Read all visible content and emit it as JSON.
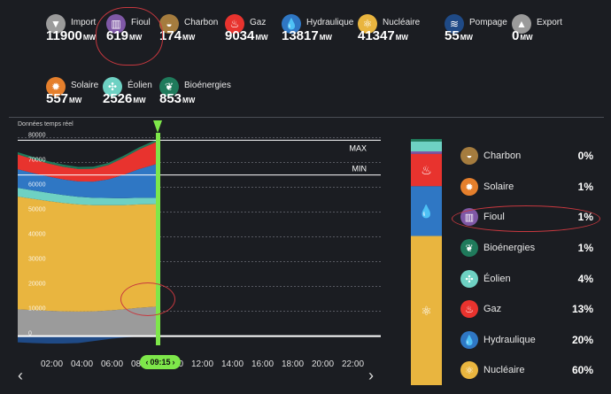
{
  "sources": [
    {
      "key": "import",
      "label": "Import",
      "value": "11900",
      "unit": "MW",
      "color": "#9b9b9b",
      "icon": "import-icon"
    },
    {
      "key": "fioul",
      "label": "Fioul",
      "value": "619",
      "unit": "MW",
      "color": "#7f58a6",
      "icon": "fuel-oil-icon"
    },
    {
      "key": "charbon",
      "label": "Charbon",
      "value": "174",
      "unit": "MW",
      "color": "#a57c3e",
      "icon": "coal-icon"
    },
    {
      "key": "gaz",
      "label": "Gaz",
      "value": "9034",
      "unit": "MW",
      "color": "#e8332e",
      "icon": "gas-icon"
    },
    {
      "key": "hydraulique",
      "label": "Hydraulique",
      "value": "13817",
      "unit": "MW",
      "color": "#2f77c4",
      "icon": "hydro-icon"
    },
    {
      "key": "nucleaire",
      "label": "Nucléaire",
      "value": "41347",
      "unit": "MW",
      "color": "#e9b53f",
      "icon": "nuclear-icon"
    },
    {
      "key": "pompage",
      "label": "Pompage",
      "value": "55",
      "unit": "MW",
      "color": "#1f4a86",
      "icon": "pumping-icon"
    },
    {
      "key": "export",
      "label": "Export",
      "value": "0",
      "unit": "MW",
      "color": "#9b9b9b",
      "icon": "export-icon"
    },
    {
      "key": "solaire",
      "label": "Solaire",
      "value": "557",
      "unit": "MW",
      "color": "#e57f2c",
      "icon": "solar-icon"
    },
    {
      "key": "eolien",
      "label": "Éolien",
      "value": "2526",
      "unit": "MW",
      "color": "#6ed1c3",
      "icon": "wind-icon"
    },
    {
      "key": "bioenergies",
      "label": "Bioénergies",
      "value": "853",
      "unit": "MW",
      "color": "#1f7a5b",
      "icon": "bioenergy-icon"
    }
  ],
  "chart": {
    "title": "Données temps réel",
    "time_badge": "09:15",
    "max_label": "MAX",
    "min_label": "MIN",
    "nav_prev": "‹",
    "nav_next": "›",
    "badge_prev": "‹",
    "badge_next": "›"
  },
  "chart_data": {
    "type": "area",
    "title": "Données temps réel",
    "x_tick_labels": [
      "02:00",
      "04:00",
      "06:00",
      "08:00",
      "10:00",
      "12:00",
      "14:00",
      "16:00",
      "18:00",
      "20:00",
      "22:00"
    ],
    "y_tick_labels": [
      "0",
      "10000",
      "20000",
      "30000",
      "40000",
      "50000",
      "60000",
      "70000",
      "80000"
    ],
    "ylim": [
      -3000,
      82000
    ],
    "xlim_hours": [
      0,
      24
    ],
    "current_time_hours": 9.25,
    "max_line": 79000,
    "min_line": 65000,
    "x": [
      0,
      1,
      2,
      3,
      4,
      5,
      6,
      7,
      8,
      9,
      9.25
    ],
    "series": [
      {
        "name": "Import",
        "color": "#9b9b9b",
        "values": [
          10800,
          10500,
          10200,
          10000,
          9900,
          10000,
          10300,
          10800,
          11400,
          11800,
          11900
        ]
      },
      {
        "name": "Nucléaire",
        "color": "#e9b53f",
        "values": [
          45500,
          44900,
          44300,
          43700,
          43200,
          42800,
          42500,
          42000,
          41700,
          41400,
          41347
        ]
      },
      {
        "name": "Éolien",
        "color": "#6ed1c3",
        "values": [
          3500,
          3400,
          3300,
          3200,
          3100,
          3000,
          2900,
          2800,
          2700,
          2600,
          2526
        ]
      },
      {
        "name": "Hydraulique",
        "color": "#2f77c4",
        "values": [
          7500,
          7000,
          6600,
          6300,
          6200,
          6500,
          7500,
          9500,
          11500,
          13300,
          13817
        ]
      },
      {
        "name": "Gaz",
        "color": "#e8332e",
        "values": [
          6000,
          5600,
          5300,
          5100,
          5000,
          5200,
          5800,
          6800,
          7900,
          8800,
          9034
        ]
      },
      {
        "name": "Bioénergies",
        "color": "#1f7a5b",
        "values": [
          900,
          900,
          880,
          870,
          860,
          860,
          860,
          860,
          855,
          853,
          853
        ]
      },
      {
        "name": "Pompage",
        "color": "#1f4a86",
        "values": [
          -2500,
          -2800,
          -3000,
          -3000,
          -2800,
          -2000,
          -1200,
          -600,
          -200,
          -60,
          -55
        ]
      }
    ]
  },
  "mix": [
    {
      "label": "Charbon",
      "pct": "0%",
      "color": "#a57c3e",
      "icon": "coal-icon"
    },
    {
      "label": "Solaire",
      "pct": "1%",
      "color": "#e57f2c",
      "icon": "solar-icon"
    },
    {
      "label": "Fioul",
      "pct": "1%",
      "color": "#7f58a6",
      "icon": "fuel-oil-icon"
    },
    {
      "label": "Bioénergies",
      "pct": "1%",
      "color": "#1f7a5b",
      "icon": "bioenergy-icon"
    },
    {
      "label": "Éolien",
      "pct": "4%",
      "color": "#6ed1c3",
      "icon": "wind-icon"
    },
    {
      "label": "Gaz",
      "pct": "13%",
      "color": "#e8332e",
      "icon": "gas-icon"
    },
    {
      "label": "Hydraulique",
      "pct": "20%",
      "color": "#2f77c4",
      "icon": "hydro-icon"
    },
    {
      "label": "Nucléaire",
      "pct": "60%",
      "color": "#e9b53f",
      "icon": "nuclear-icon"
    }
  ],
  "mix_bar": [
    {
      "name": "Bioénergies",
      "color": "#1f7a5b",
      "value": 1
    },
    {
      "name": "Éolien",
      "color": "#6ed1c3",
      "value": 4
    },
    {
      "name": "Fioul",
      "color": "#7f58a6",
      "value": 1
    },
    {
      "name": "Gaz",
      "color": "#e8332e",
      "value": 13
    },
    {
      "name": "Hydraulique",
      "color": "#2f77c4",
      "value": 20
    },
    {
      "name": "Nucléaire",
      "color": "#e9b53f",
      "value": 60
    }
  ],
  "glyphs": {
    "import-icon": "▼",
    "fuel-oil-icon": "▥",
    "coal-icon": "◒",
    "gas-icon": "♨",
    "hydro-icon": "💧",
    "nuclear-icon": "⚛",
    "pumping-icon": "≋",
    "export-icon": "▲",
    "solar-icon": "✹",
    "wind-icon": "✣",
    "bioenergy-icon": "❦"
  }
}
